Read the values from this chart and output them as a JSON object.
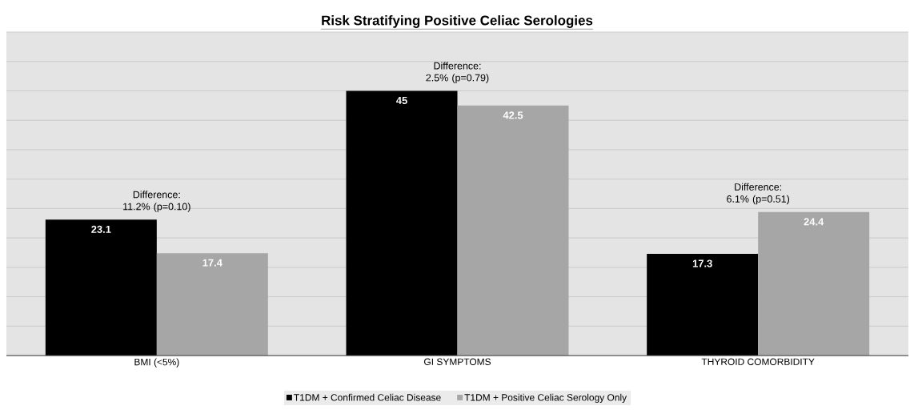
{
  "chart_data": {
    "type": "bar",
    "title": "Risk Stratifying Positive Celiac Serologies",
    "categories": [
      "BMI (<5%)",
      "GI SYMPTOMS",
      "THYROID COMORBIDITY"
    ],
    "series": [
      {
        "name": "T1DM + Confirmed Celiac Disease",
        "color": "#000000",
        "values": [
          23.1,
          45,
          17.3
        ]
      },
      {
        "name": "T1DM + Positive Celiac Serology Only",
        "color": "#a6a6a6",
        "values": [
          17.4,
          42.5,
          24.4
        ]
      }
    ],
    "ylim": [
      0,
      55
    ],
    "yticks": [
      {
        "value": 0,
        "label": null
      },
      {
        "value": 5,
        "label": null
      },
      {
        "value": 10,
        "label": null
      },
      {
        "value": 15,
        "label": null
      },
      {
        "value": 20,
        "label": null
      },
      {
        "value": 25,
        "label": null
      },
      {
        "value": 30,
        "label": null
      },
      {
        "value": 35,
        "label": null
      },
      {
        "value": 40,
        "label": null
      },
      {
        "value": 45,
        "label": null
      },
      {
        "value": 50,
        "label": null
      },
      {
        "value": 55,
        "label": null
      }
    ],
    "grid": "y",
    "legend": "bottom",
    "data_labels": true,
    "annotations": [
      "Difference: 11.2% (p=0.10)",
      "Difference: 2.5% (p=0.79)",
      "Difference: 6.1% (p=0.51)"
    ]
  }
}
